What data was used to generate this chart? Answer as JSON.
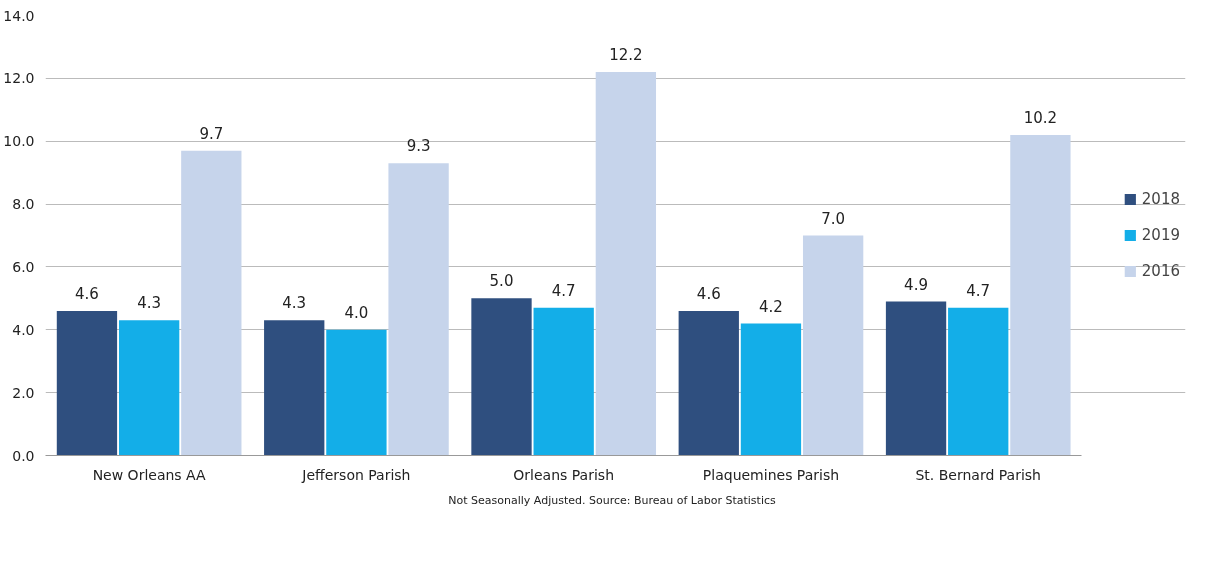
{
  "chart_data": {
    "type": "bar",
    "categories": [
      "New Orleans AA",
      "Jefferson Parish",
      "Orleans Parish",
      "Plaquemines Parish",
      "St. Bernard Parish"
    ],
    "series": [
      {
        "name": "2018",
        "color": "#2f4f7f",
        "values": [
          4.6,
          4.3,
          5.0,
          4.6,
          4.9
        ],
        "value_labels": [
          "4.6",
          "4.3",
          "5.0",
          "4.6",
          "4.9"
        ]
      },
      {
        "name": "2019",
        "color": "#13aee8",
        "values": [
          4.3,
          4.0,
          4.7,
          4.2,
          4.7
        ],
        "value_labels": [
          "4.3",
          "4.0",
          "4.7",
          "4.2",
          "4.7"
        ]
      },
      {
        "name": "2016",
        "color": "#c6d4eb",
        "values": [
          9.7,
          9.3,
          12.2,
          7.0,
          10.2
        ],
        "value_labels": [
          "9.7",
          "9.3",
          "12.2",
          "7.0",
          "10.2"
        ]
      }
    ],
    "ylim": [
      0,
      14
    ],
    "yticks": [
      {
        "value": 0,
        "label": "0.0"
      },
      {
        "value": 2,
        "label": "2.0"
      },
      {
        "value": 4,
        "label": "4.0"
      },
      {
        "value": 6,
        "label": "6.0"
      },
      {
        "value": 8,
        "label": "8.0"
      },
      {
        "value": 10,
        "label": "10.0"
      },
      {
        "value": 12,
        "label": "12.0"
      },
      {
        "value": 14,
        "label": "14.0"
      }
    ],
    "grid": "y",
    "legend": "right",
    "annotations": [
      "Not Seasonally Adjusted.   Source: Bureau of Labor Statistics"
    ]
  }
}
